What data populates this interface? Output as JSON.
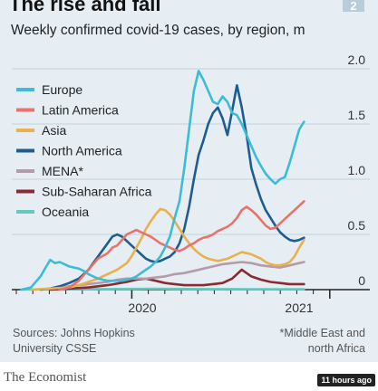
{
  "badge": "2",
  "chart_data": {
    "type": "line",
    "title": "The rise and fall",
    "subtitle": "Weekly confirmed covid-19 cases, by region, m",
    "x_ticks": [
      "2020",
      "2021"
    ],
    "y_ticks": [
      "0",
      "0.5",
      "1.0",
      "1.5",
      "2.0"
    ],
    "ylim": [
      0,
      2.0
    ],
    "x_domain": [
      0,
      70
    ],
    "grid": true,
    "legend_position": "top-left",
    "series": [
      {
        "name": "Europe",
        "color": "#3ebbd6",
        "points": [
          [
            2,
            0
          ],
          [
            4,
            0.02
          ],
          [
            6,
            0.12
          ],
          [
            8,
            0.27
          ],
          [
            9,
            0.24
          ],
          [
            10,
            0.25
          ],
          [
            11,
            0.23
          ],
          [
            12,
            0.21
          ],
          [
            13,
            0.2
          ],
          [
            14,
            0.19
          ],
          [
            15,
            0.17
          ],
          [
            16,
            0.14
          ],
          [
            17,
            0.12
          ],
          [
            18,
            0.1
          ],
          [
            19,
            0.09
          ],
          [
            20,
            0.08
          ],
          [
            21,
            0.08
          ],
          [
            22,
            0.08
          ],
          [
            23,
            0.08
          ],
          [
            24,
            0.09
          ],
          [
            25,
            0.1
          ],
          [
            26,
            0.12
          ],
          [
            27,
            0.15
          ],
          [
            28,
            0.18
          ],
          [
            29,
            0.21
          ],
          [
            30,
            0.25
          ],
          [
            31,
            0.3
          ],
          [
            32,
            0.38
          ],
          [
            33,
            0.48
          ],
          [
            34,
            0.65
          ],
          [
            35,
            0.8
          ],
          [
            36,
            1.1
          ],
          [
            37,
            1.45
          ],
          [
            38,
            1.8
          ],
          [
            39,
            1.98
          ],
          [
            40,
            1.9
          ],
          [
            41,
            1.8
          ],
          [
            42,
            1.7
          ],
          [
            43,
            1.68
          ],
          [
            44,
            1.75
          ],
          [
            45,
            1.7
          ],
          [
            46,
            1.6
          ],
          [
            47,
            1.58
          ],
          [
            48,
            1.5
          ],
          [
            49,
            1.4
          ],
          [
            50,
            1.3
          ],
          [
            51,
            1.2
          ],
          [
            52,
            1.12
          ],
          [
            53,
            1.05
          ],
          [
            54,
            1.0
          ],
          [
            55,
            0.96
          ],
          [
            56,
            1.0
          ],
          [
            57,
            1.02
          ],
          [
            58,
            1.15
          ],
          [
            59,
            1.3
          ],
          [
            60,
            1.45
          ],
          [
            61,
            1.52
          ]
        ]
      },
      {
        "name": "Latin America",
        "color": "#e8736a",
        "points": [
          [
            10,
            0
          ],
          [
            12,
            0.02
          ],
          [
            14,
            0.08
          ],
          [
            16,
            0.18
          ],
          [
            18,
            0.28
          ],
          [
            20,
            0.33
          ],
          [
            21,
            0.38
          ],
          [
            22,
            0.4
          ],
          [
            23,
            0.45
          ],
          [
            24,
            0.5
          ],
          [
            25,
            0.52
          ],
          [
            26,
            0.54
          ],
          [
            27,
            0.52
          ],
          [
            28,
            0.5
          ],
          [
            29,
            0.48
          ],
          [
            30,
            0.45
          ],
          [
            31,
            0.42
          ],
          [
            32,
            0.4
          ],
          [
            33,
            0.38
          ],
          [
            34,
            0.36
          ],
          [
            35,
            0.35
          ],
          [
            36,
            0.37
          ],
          [
            37,
            0.4
          ],
          [
            38,
            0.42
          ],
          [
            39,
            0.45
          ],
          [
            40,
            0.47
          ],
          [
            41,
            0.48
          ],
          [
            42,
            0.5
          ],
          [
            43,
            0.53
          ],
          [
            44,
            0.55
          ],
          [
            45,
            0.57
          ],
          [
            46,
            0.6
          ],
          [
            47,
            0.65
          ],
          [
            48,
            0.72
          ],
          [
            49,
            0.75
          ],
          [
            50,
            0.72
          ],
          [
            51,
            0.68
          ],
          [
            52,
            0.63
          ],
          [
            53,
            0.58
          ],
          [
            54,
            0.55
          ],
          [
            55,
            0.56
          ],
          [
            56,
            0.6
          ],
          [
            57,
            0.64
          ],
          [
            58,
            0.68
          ],
          [
            59,
            0.72
          ],
          [
            60,
            0.76
          ],
          [
            61,
            0.8
          ]
        ]
      },
      {
        "name": "Asia",
        "color": "#e8b04f",
        "points": [
          [
            4,
            0
          ],
          [
            8,
            0.01
          ],
          [
            12,
            0.02
          ],
          [
            14,
            0.04
          ],
          [
            16,
            0.07
          ],
          [
            18,
            0.1
          ],
          [
            20,
            0.14
          ],
          [
            22,
            0.18
          ],
          [
            24,
            0.24
          ],
          [
            25,
            0.3
          ],
          [
            26,
            0.38
          ],
          [
            27,
            0.46
          ],
          [
            28,
            0.55
          ],
          [
            29,
            0.62
          ],
          [
            30,
            0.68
          ],
          [
            31,
            0.73
          ],
          [
            32,
            0.72
          ],
          [
            33,
            0.68
          ],
          [
            34,
            0.62
          ],
          [
            35,
            0.55
          ],
          [
            36,
            0.48
          ],
          [
            37,
            0.42
          ],
          [
            38,
            0.37
          ],
          [
            39,
            0.33
          ],
          [
            40,
            0.3
          ],
          [
            41,
            0.28
          ],
          [
            42,
            0.27
          ],
          [
            43,
            0.26
          ],
          [
            44,
            0.27
          ],
          [
            45,
            0.28
          ],
          [
            46,
            0.3
          ],
          [
            47,
            0.32
          ],
          [
            48,
            0.34
          ],
          [
            49,
            0.33
          ],
          [
            50,
            0.32
          ],
          [
            51,
            0.3
          ],
          [
            52,
            0.28
          ],
          [
            53,
            0.25
          ],
          [
            54,
            0.23
          ],
          [
            55,
            0.22
          ],
          [
            56,
            0.22
          ],
          [
            57,
            0.23
          ],
          [
            58,
            0.25
          ],
          [
            59,
            0.3
          ],
          [
            60,
            0.38
          ],
          [
            61,
            0.45
          ]
        ]
      },
      {
        "name": "North America",
        "color": "#1e5c91",
        "points": [
          [
            6,
            0
          ],
          [
            8,
            0.01
          ],
          [
            10,
            0.03
          ],
          [
            12,
            0.06
          ],
          [
            14,
            0.1
          ],
          [
            16,
            0.18
          ],
          [
            18,
            0.3
          ],
          [
            19,
            0.36
          ],
          [
            20,
            0.42
          ],
          [
            21,
            0.48
          ],
          [
            22,
            0.5
          ],
          [
            23,
            0.48
          ],
          [
            24,
            0.44
          ],
          [
            25,
            0.4
          ],
          [
            26,
            0.36
          ],
          [
            27,
            0.32
          ],
          [
            28,
            0.28
          ],
          [
            29,
            0.26
          ],
          [
            30,
            0.25
          ],
          [
            31,
            0.26
          ],
          [
            32,
            0.28
          ],
          [
            33,
            0.3
          ],
          [
            34,
            0.34
          ],
          [
            35,
            0.42
          ],
          [
            36,
            0.55
          ],
          [
            37,
            0.75
          ],
          [
            38,
            1.0
          ],
          [
            39,
            1.22
          ],
          [
            40,
            1.35
          ],
          [
            41,
            1.5
          ],
          [
            42,
            1.6
          ],
          [
            43,
            1.65
          ],
          [
            44,
            1.55
          ],
          [
            45,
            1.4
          ],
          [
            46,
            1.62
          ],
          [
            47,
            1.85
          ],
          [
            48,
            1.65
          ],
          [
            49,
            1.4
          ],
          [
            50,
            1.1
          ],
          [
            51,
            0.95
          ],
          [
            52,
            0.82
          ],
          [
            53,
            0.72
          ],
          [
            54,
            0.65
          ],
          [
            55,
            0.58
          ],
          [
            56,
            0.52
          ],
          [
            57,
            0.48
          ],
          [
            58,
            0.45
          ],
          [
            59,
            0.44
          ],
          [
            60,
            0.45
          ],
          [
            61,
            0.47
          ]
        ]
      },
      {
        "name": "MENA*",
        "color": "#b49ba8",
        "points": [
          [
            6,
            0
          ],
          [
            8,
            0.01
          ],
          [
            10,
            0.02
          ],
          [
            12,
            0.03
          ],
          [
            14,
            0.04
          ],
          [
            16,
            0.05
          ],
          [
            18,
            0.06
          ],
          [
            20,
            0.07
          ],
          [
            22,
            0.09
          ],
          [
            24,
            0.1
          ],
          [
            26,
            0.1
          ],
          [
            28,
            0.1
          ],
          [
            30,
            0.11
          ],
          [
            32,
            0.12
          ],
          [
            34,
            0.14
          ],
          [
            36,
            0.15
          ],
          [
            38,
            0.17
          ],
          [
            40,
            0.19
          ],
          [
            42,
            0.21
          ],
          [
            44,
            0.23
          ],
          [
            46,
            0.24
          ],
          [
            48,
            0.25
          ],
          [
            50,
            0.24
          ],
          [
            52,
            0.22
          ],
          [
            54,
            0.21
          ],
          [
            56,
            0.2
          ],
          [
            58,
            0.22
          ],
          [
            60,
            0.24
          ],
          [
            61,
            0.25
          ]
        ]
      },
      {
        "name": "Sub-Saharan Africa",
        "color": "#8a2a32",
        "points": [
          [
            8,
            0
          ],
          [
            12,
            0.01
          ],
          [
            16,
            0.02
          ],
          [
            20,
            0.04
          ],
          [
            24,
            0.07
          ],
          [
            26,
            0.09
          ],
          [
            28,
            0.1
          ],
          [
            30,
            0.08
          ],
          [
            32,
            0.06
          ],
          [
            34,
            0.05
          ],
          [
            36,
            0.04
          ],
          [
            38,
            0.04
          ],
          [
            40,
            0.04
          ],
          [
            42,
            0.05
          ],
          [
            44,
            0.06
          ],
          [
            46,
            0.1
          ],
          [
            47,
            0.14
          ],
          [
            48,
            0.18
          ],
          [
            49,
            0.15
          ],
          [
            50,
            0.12
          ],
          [
            52,
            0.09
          ],
          [
            54,
            0.07
          ],
          [
            56,
            0.06
          ],
          [
            58,
            0.05
          ],
          [
            60,
            0.05
          ],
          [
            61,
            0.05
          ]
        ]
      },
      {
        "name": "Oceania",
        "color": "#63c9c0",
        "points": [
          [
            2,
            0
          ],
          [
            10,
            0.005
          ],
          [
            20,
            0.005
          ],
          [
            30,
            0.008
          ],
          [
            40,
            0.005
          ],
          [
            50,
            0.004
          ],
          [
            61,
            0.004
          ]
        ]
      }
    ]
  },
  "source_lines": [
    "Sources: Johns Hopkins",
    "University CSSE"
  ],
  "footnote_lines": [
    "*Middle East and",
    "north Africa"
  ],
  "brand": "The Economist",
  "timeago": "11 hours ago"
}
